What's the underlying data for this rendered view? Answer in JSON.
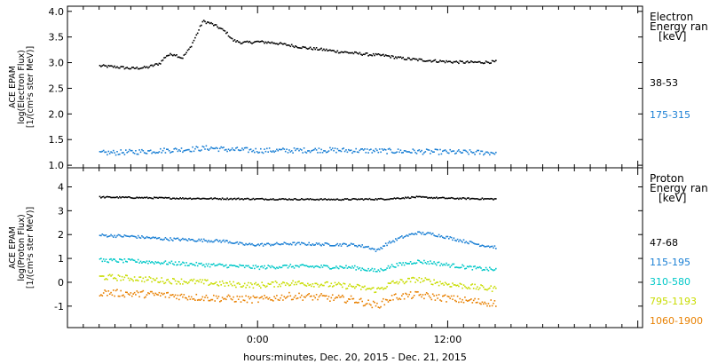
{
  "chart_data": [
    {
      "type": "scatter",
      "panel": "electron",
      "ylabel": [
        "ACE EPAM",
        "log(Electron Flux)",
        "[1/(cm²s ster MeV)]"
      ],
      "ylim": [
        0.95,
        4.1
      ],
      "yticks": [
        "1.0",
        "1.5",
        "2.0",
        "2.5",
        "3.0",
        "3.5",
        "4.0"
      ],
      "ytick_values": [
        1.0,
        1.5,
        2.0,
        2.5,
        3.0,
        3.5,
        4.0
      ],
      "legend_title": [
        "Electron",
        "Energy ran",
        "[keV]"
      ],
      "series": [
        {
          "name": "38-53",
          "color": "#000000",
          "points": [
            [
              -10.0,
              2.95
            ],
            [
              -9.0,
              2.93
            ],
            [
              -8.0,
              2.9
            ],
            [
              -7.0,
              2.92
            ],
            [
              -6.2,
              3.0
            ],
            [
              -5.8,
              3.15
            ],
            [
              -5.3,
              3.18
            ],
            [
              -4.8,
              3.1
            ],
            [
              -4.3,
              3.3
            ],
            [
              -3.9,
              3.55
            ],
            [
              -3.5,
              3.82
            ],
            [
              -3.0,
              3.78
            ],
            [
              -2.5,
              3.7
            ],
            [
              -2.0,
              3.6
            ],
            [
              -1.6,
              3.45
            ],
            [
              -1.0,
              3.4
            ],
            [
              0.0,
              3.42
            ],
            [
              1.0,
              3.4
            ],
            [
              2.0,
              3.35
            ],
            [
              3.0,
              3.3
            ],
            [
              4.0,
              3.27
            ],
            [
              5.0,
              3.23
            ],
            [
              6.0,
              3.2
            ],
            [
              7.0,
              3.17
            ],
            [
              8.0,
              3.15
            ],
            [
              9.0,
              3.1
            ],
            [
              10.0,
              3.07
            ],
            [
              11.0,
              3.05
            ],
            [
              12.0,
              3.03
            ],
            [
              13.0,
              3.02
            ],
            [
              14.0,
              3.02
            ],
            [
              15.0,
              3.03
            ]
          ],
          "jitter": 0.025
        },
        {
          "name": "175-315",
          "color": "#1a7fd4",
          "points": [
            [
              -10.0,
              1.25
            ],
            [
              -8.0,
              1.27
            ],
            [
              -6.0,
              1.3
            ],
            [
              -4.0,
              1.33
            ],
            [
              -3.0,
              1.35
            ],
            [
              -2.0,
              1.32
            ],
            [
              0.0,
              1.3
            ],
            [
              2.0,
              1.3
            ],
            [
              4.0,
              1.31
            ],
            [
              6.0,
              1.3
            ],
            [
              8.0,
              1.29
            ],
            [
              10.0,
              1.28
            ],
            [
              12.0,
              1.27
            ],
            [
              14.0,
              1.26
            ],
            [
              15.0,
              1.26
            ]
          ],
          "jitter": 0.05
        }
      ]
    },
    {
      "type": "scatter",
      "panel": "proton",
      "ylabel": [
        "ACE EPAM",
        "log(Proton Flux)",
        "[1/(cm²s ster MeV)]"
      ],
      "ylim": [
        -1.9,
        4.8
      ],
      "yticks": [
        "-1",
        "0",
        "1",
        "2",
        "3",
        "4"
      ],
      "ytick_values": [
        -1,
        0,
        1,
        2,
        3,
        4
      ],
      "legend_title": [
        "Proton",
        "Energy ran",
        "[keV]"
      ],
      "xlabel": "hours:minutes, Dec. 20, 2015 - Dec. 21, 2015",
      "xticks": [
        "0:00",
        "12:00"
      ],
      "xtick_values": [
        0,
        12
      ],
      "xlim": [
        -12,
        24.3
      ],
      "series": [
        {
          "name": "47-68",
          "color": "#000000",
          "points": [
            [
              -10.0,
              3.6
            ],
            [
              -5.0,
              3.55
            ],
            [
              0.0,
              3.52
            ],
            [
              5.0,
              3.5
            ],
            [
              8.0,
              3.52
            ],
            [
              10.0,
              3.6
            ],
            [
              12.0,
              3.55
            ],
            [
              15.0,
              3.52
            ]
          ],
          "jitter": 0.03
        },
        {
          "name": "115-195",
          "color": "#1a7fd4",
          "points": [
            [
              -10.0,
              2.0
            ],
            [
              -8.0,
              1.95
            ],
            [
              -6.0,
              1.85
            ],
            [
              -4.0,
              1.8
            ],
            [
              -2.0,
              1.75
            ],
            [
              -1.0,
              1.62
            ],
            [
              0.0,
              1.6
            ],
            [
              2.0,
              1.65
            ],
            [
              4.0,
              1.62
            ],
            [
              6.0,
              1.6
            ],
            [
              7.0,
              1.5
            ],
            [
              7.5,
              1.35
            ],
            [
              8.0,
              1.6
            ],
            [
              9.0,
              1.9
            ],
            [
              10.0,
              2.1
            ],
            [
              11.0,
              2.05
            ],
            [
              12.0,
              1.9
            ],
            [
              13.0,
              1.75
            ],
            [
              14.0,
              1.6
            ],
            [
              15.0,
              1.5
            ]
          ],
          "jitter": 0.06
        },
        {
          "name": "310-580",
          "color": "#00c8c8",
          "points": [
            [
              -10.0,
              0.95
            ],
            [
              -8.0,
              0.92
            ],
            [
              -6.0,
              0.85
            ],
            [
              -4.0,
              0.78
            ],
            [
              -2.0,
              0.72
            ],
            [
              0.0,
              0.65
            ],
            [
              2.0,
              0.7
            ],
            [
              4.0,
              0.68
            ],
            [
              6.0,
              0.65
            ],
            [
              7.5,
              0.5
            ],
            [
              8.5,
              0.72
            ],
            [
              10.0,
              0.9
            ],
            [
              11.0,
              0.85
            ],
            [
              12.0,
              0.75
            ],
            [
              14.0,
              0.6
            ],
            [
              15.0,
              0.55
            ]
          ],
          "jitter": 0.08
        },
        {
          "name": "795-1193",
          "color": "#c8dc00",
          "points": [
            [
              -10.0,
              0.25
            ],
            [
              -8.0,
              0.2
            ],
            [
              -6.0,
              0.1
            ],
            [
              -4.0,
              0.05
            ],
            [
              -2.0,
              -0.05
            ],
            [
              0.0,
              -0.1
            ],
            [
              2.0,
              0.0
            ],
            [
              4.0,
              -0.05
            ],
            [
              6.0,
              -0.15
            ],
            [
              7.5,
              -0.3
            ],
            [
              8.5,
              0.0
            ],
            [
              10.0,
              0.15
            ],
            [
              12.0,
              -0.05
            ],
            [
              14.0,
              -0.2
            ],
            [
              15.0,
              -0.25
            ]
          ],
          "jitter": 0.12
        },
        {
          "name": "1060-1900",
          "color": "#e88000",
          "points": [
            [
              -10.0,
              -0.4
            ],
            [
              -8.0,
              -0.45
            ],
            [
              -6.0,
              -0.5
            ],
            [
              -4.0,
              -0.6
            ],
            [
              -2.0,
              -0.65
            ],
            [
              0.0,
              -0.7
            ],
            [
              2.0,
              -0.55
            ],
            [
              4.0,
              -0.6
            ],
            [
              6.0,
              -0.7
            ],
            [
              7.5,
              -0.95
            ],
            [
              8.5,
              -0.6
            ],
            [
              10.0,
              -0.5
            ],
            [
              12.0,
              -0.65
            ],
            [
              14.0,
              -0.8
            ],
            [
              15.0,
              -0.85
            ]
          ],
          "jitter": 0.15
        }
      ]
    }
  ]
}
